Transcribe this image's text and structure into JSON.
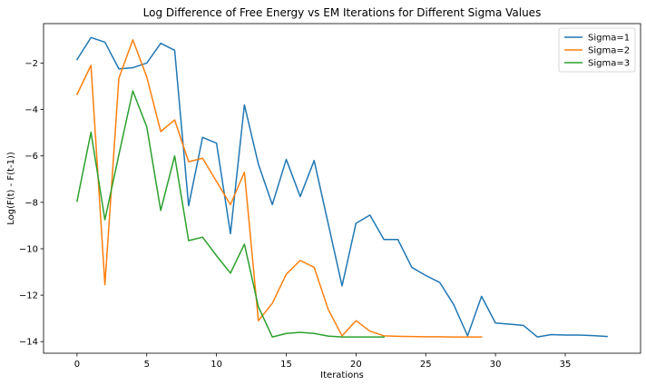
{
  "chart_data": {
    "type": "line",
    "title": "Log Difference of Free Energy vs EM Iterations for Different Sigma Values",
    "xlabel": "Iterations",
    "ylabel": "Log(F(t) - F(t-1))",
    "xlim": [
      -2.4,
      40.4
    ],
    "ylim": [
      -14.5,
      -0.3
    ],
    "xticks": [
      0,
      5,
      10,
      15,
      20,
      25,
      30,
      35
    ],
    "yticks": [
      -14,
      -12,
      -10,
      -8,
      -6,
      -4,
      -2
    ],
    "grid": false,
    "legend_position": "top-right",
    "series": [
      {
        "name": "Sigma=1",
        "color": "#1f77b4",
        "x": [
          0,
          1,
          2,
          3,
          4,
          5,
          6,
          7,
          8,
          9,
          10,
          11,
          12,
          13,
          14,
          15,
          16,
          17,
          18,
          19,
          20,
          21,
          22,
          23,
          24,
          25,
          26,
          27,
          28,
          29,
          30,
          31,
          32,
          33,
          34,
          35,
          36,
          37,
          38
        ],
        "y": [
          -1.85,
          -0.9,
          -1.1,
          -2.25,
          -2.2,
          -2.0,
          -1.15,
          -1.45,
          -8.15,
          -5.2,
          -5.45,
          -9.35,
          -3.8,
          -6.35,
          -8.1,
          -6.15,
          -7.75,
          -6.2,
          -8.9,
          -11.6,
          -8.9,
          -8.55,
          -9.6,
          -9.6,
          -10.8,
          -11.15,
          -11.45,
          -12.4,
          -13.75,
          -12.05,
          -13.2,
          -13.25,
          -13.3,
          -13.8,
          -13.7,
          -13.72,
          -13.72,
          -13.74,
          -13.78
        ]
      },
      {
        "name": "Sigma=2",
        "color": "#ff7f0e",
        "x": [
          0,
          1,
          2,
          3,
          4,
          5,
          6,
          7,
          8,
          9,
          10,
          11,
          12,
          13,
          14,
          15,
          16,
          17,
          18,
          19,
          20,
          21,
          22,
          23,
          24,
          25,
          26,
          27,
          28,
          29
        ],
        "y": [
          -3.35,
          -2.1,
          -11.55,
          -2.65,
          -1.0,
          -2.6,
          -4.95,
          -4.45,
          -6.25,
          -6.1,
          -7.1,
          -8.1,
          -6.7,
          -13.1,
          -12.35,
          -11.1,
          -10.5,
          -10.8,
          -12.6,
          -13.75,
          -13.1,
          -13.55,
          -13.75,
          -13.77,
          -13.78,
          -13.79,
          -13.79,
          -13.8,
          -13.8,
          -13.8
        ]
      },
      {
        "name": "Sigma=3",
        "color": "#2ca02c",
        "x": [
          0,
          1,
          2,
          3,
          4,
          5,
          6,
          7,
          8,
          9,
          10,
          11,
          12,
          13,
          14,
          15,
          16,
          17,
          18,
          19,
          20,
          21,
          22
        ],
        "y": [
          -7.95,
          -4.98,
          -8.75,
          -5.95,
          -3.2,
          -4.75,
          -8.35,
          -6.0,
          -9.65,
          -9.5,
          -10.3,
          -11.05,
          -9.8,
          -12.5,
          -13.8,
          -13.65,
          -13.6,
          -13.65,
          -13.76,
          -13.8,
          -13.8,
          -13.8,
          -13.8
        ]
      }
    ]
  }
}
